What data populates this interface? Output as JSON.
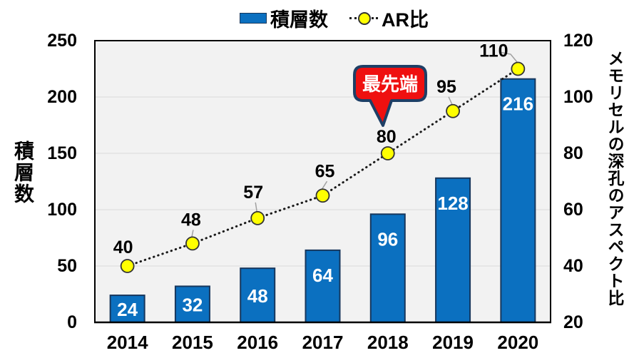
{
  "legend": {
    "items": [
      {
        "label": "積層数",
        "swatch": "bar"
      },
      {
        "label": "AR比",
        "swatch": "line-marker"
      }
    ]
  },
  "callout": {
    "text": "最先端"
  },
  "chart_data": {
    "type": "bar+line",
    "categories": [
      "2014",
      "2015",
      "2016",
      "2017",
      "2018",
      "2019",
      "2020"
    ],
    "series": [
      {
        "name": "積層数",
        "type": "bar",
        "axis": "left",
        "values": [
          24,
          32,
          48,
          64,
          96,
          128,
          216
        ]
      },
      {
        "name": "AR比",
        "type": "line",
        "axis": "right",
        "values": [
          40,
          48,
          57,
          65,
          80,
          95,
          110
        ]
      }
    ],
    "left_axis": {
      "title": "積層数",
      "range": [
        0,
        250
      ],
      "ticks": [
        0,
        50,
        100,
        150,
        200,
        250
      ]
    },
    "right_axis": {
      "title": "メモリセルの深孔のアスペクト比",
      "range": [
        20,
        120
      ],
      "ticks": [
        20,
        40,
        60,
        80,
        100,
        120
      ]
    },
    "annotation": {
      "text": "最先端",
      "target_series": "AR比",
      "target_category": "2018"
    },
    "grid": "horizontal",
    "legend_position": "top",
    "colors": {
      "bar": "#0b70c0",
      "bar_border": "#17375d",
      "bar_label": "#ffffff",
      "line": "#1a1a1a",
      "marker_fill": "#ffff00",
      "marker_border": "#333333",
      "plot_bg": "#f2f2f2",
      "grid": "#d9d9d9",
      "axis": "#000000",
      "callout_fill": "#ef1010",
      "callout_border": "#1e3f66",
      "leader": "#a0a0a0"
    }
  }
}
